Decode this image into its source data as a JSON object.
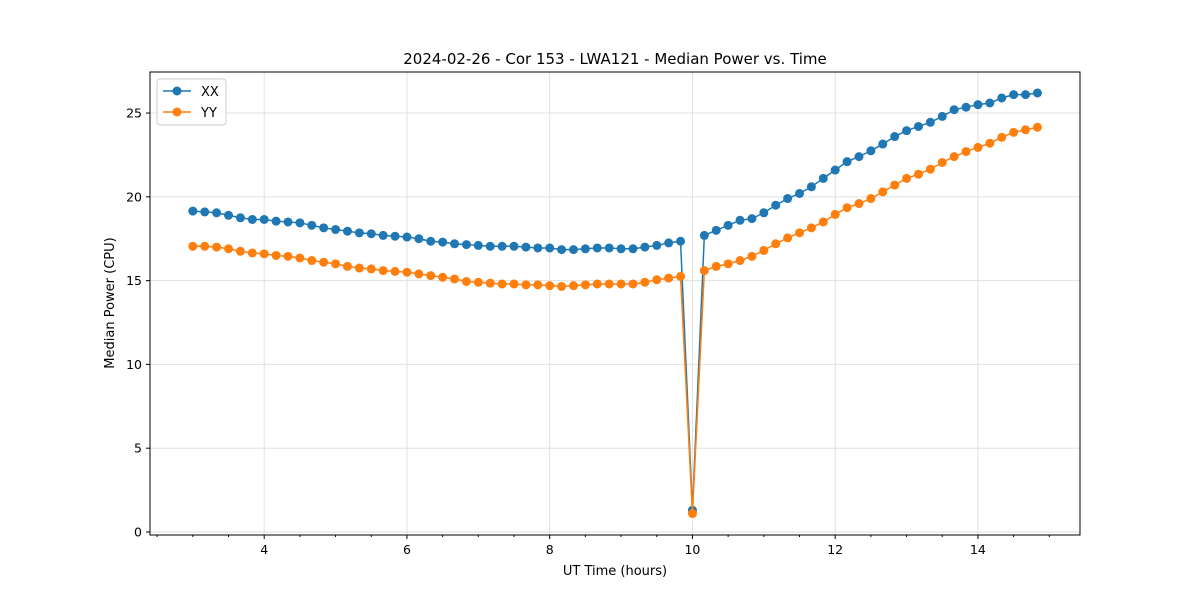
{
  "chart_data": {
    "type": "line",
    "title": "2024-02-26 - Cor 153 - LWA121 - Median Power vs. Time",
    "xlabel": "UT Time (hours)",
    "ylabel": "Median Power (CPU)",
    "xlim": [
      2.4,
      15.43
    ],
    "ylim": [
      -0.18,
      27.45
    ],
    "xticks": [
      4,
      6,
      8,
      10,
      12,
      14
    ],
    "yticks": [
      0,
      5,
      10,
      15,
      20,
      25
    ],
    "grid": true,
    "legend_placement": "top-left",
    "x_start": 3.0,
    "x_step_hours": 0.16667,
    "series": [
      {
        "name": "XX",
        "color": "#1f77b4",
        "values": [
          19.15,
          19.1,
          19.05,
          18.9,
          18.75,
          18.65,
          18.65,
          18.55,
          18.5,
          18.45,
          18.3,
          18.15,
          18.05,
          17.95,
          17.85,
          17.8,
          17.7,
          17.65,
          17.6,
          17.5,
          17.35,
          17.3,
          17.2,
          17.15,
          17.1,
          17.05,
          17.05,
          17.05,
          17.0,
          16.95,
          16.95,
          16.85,
          16.85,
          16.9,
          16.95,
          16.95,
          16.9,
          16.9,
          17.0,
          17.1,
          17.25,
          17.35,
          1.3,
          17.7,
          18.0,
          18.3,
          18.6,
          18.7,
          19.05,
          19.5,
          19.9,
          20.2,
          20.6,
          21.1,
          21.6,
          22.1,
          22.4,
          22.75,
          23.15,
          23.6,
          23.95,
          24.2,
          24.45,
          24.8,
          25.2,
          25.35,
          25.5,
          25.6,
          25.9,
          26.1,
          26.1,
          26.2
        ]
      },
      {
        "name": "YY",
        "color": "#ff7f0e",
        "values": [
          17.05,
          17.05,
          17.0,
          16.9,
          16.75,
          16.65,
          16.6,
          16.5,
          16.45,
          16.35,
          16.2,
          16.1,
          16.0,
          15.85,
          15.75,
          15.7,
          15.6,
          15.55,
          15.5,
          15.4,
          15.3,
          15.2,
          15.1,
          14.95,
          14.9,
          14.85,
          14.8,
          14.8,
          14.75,
          14.75,
          14.7,
          14.65,
          14.7,
          14.75,
          14.8,
          14.8,
          14.8,
          14.8,
          14.9,
          15.05,
          15.15,
          15.25,
          1.1,
          15.6,
          15.85,
          16.0,
          16.2,
          16.45,
          16.8,
          17.2,
          17.55,
          17.85,
          18.15,
          18.5,
          18.95,
          19.35,
          19.6,
          19.9,
          20.3,
          20.7,
          21.1,
          21.35,
          21.65,
          22.05,
          22.4,
          22.7,
          22.95,
          23.2,
          23.55,
          23.85,
          24.0,
          24.15
        ]
      }
    ]
  }
}
